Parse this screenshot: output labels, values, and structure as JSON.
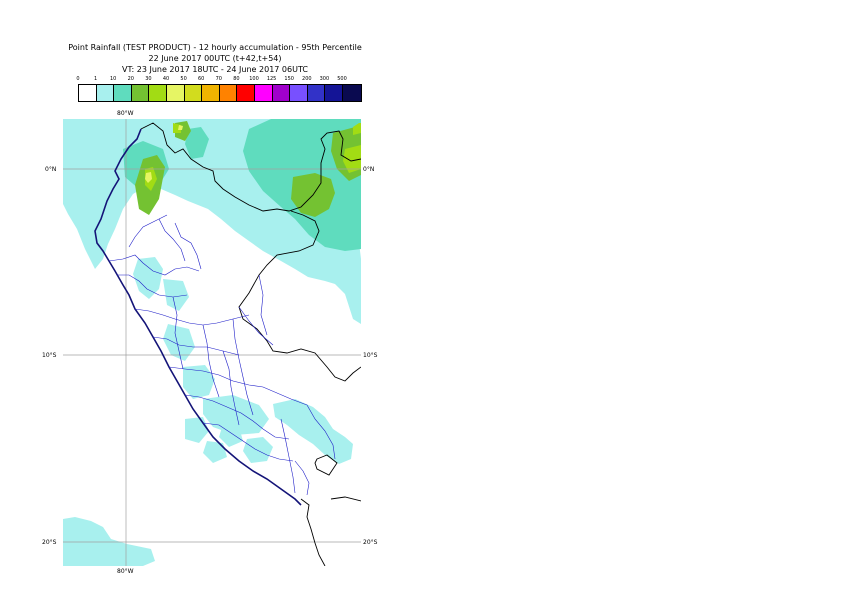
{
  "title": {
    "line1": "Point Rainfall (TEST PRODUCT) - 12 hourly accumulation - 95th Percentile",
    "line2": "22 June 2017 00UTC (t+42,t+54)",
    "line3": "VT: 23 June 2017 18UTC - 24 June 2017 06UTC"
  },
  "legend": {
    "labels": [
      "0",
      "1",
      "10",
      "20",
      "30",
      "40",
      "50",
      "60",
      "70",
      "80",
      "100",
      "125",
      "150",
      "200",
      "300",
      "500"
    ],
    "colors": [
      "#ffffff",
      "#a8f0ee",
      "#5fdcbe",
      "#74c232",
      "#a2dc14",
      "#e6f564",
      "#d2dc1e",
      "#f0b400",
      "#ff8200",
      "#ff0000",
      "#ff00ff",
      "#a000cc",
      "#7850ff",
      "#3232c8",
      "#141496",
      "#0a0a50"
    ]
  },
  "map": {
    "lon_top": "80°W",
    "lon_bottom": "80°W",
    "lat_left": [
      "0°N",
      "10°S",
      "20°S"
    ],
    "lat_right": [
      "0°N",
      "10°S",
      "20°S"
    ]
  }
}
